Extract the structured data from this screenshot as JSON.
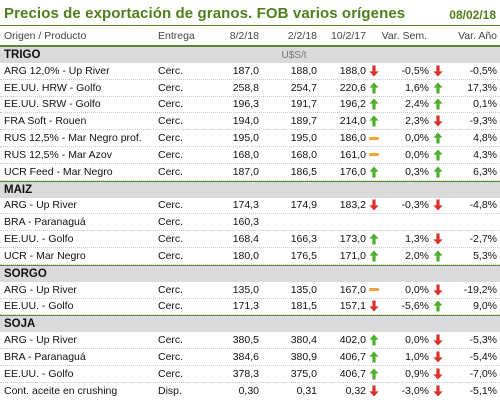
{
  "title": "Precios de exportación de granos. FOB varios orígenes",
  "date": "08/02/18",
  "headers": {
    "product": "Origen / Producto",
    "delivery": "Entrega",
    "d1": "8/2/18",
    "d2": "2/2/18",
    "d3": "10/2/17",
    "var_week": "Var. Sem.",
    "var_year": "Var. Año"
  },
  "colors": {
    "up": "#4caf2a",
    "down": "#d9312a",
    "flat": "#f2a33a",
    "accent": "#4f7f1c"
  },
  "sections": [
    {
      "name": "TRIGO",
      "unit": "U$S/t",
      "rows": [
        {
          "product": "ARG 12,0% - Up River",
          "delivery": "Cerc.",
          "d1": "187,0",
          "d2": "188,0",
          "d3": "188,0",
          "dir_w": "down",
          "var_week": "-0,5%",
          "dir_y": "down",
          "var_year": "-0,5%"
        },
        {
          "product": "EE.UU. HRW - Golfo",
          "delivery": "Cerc.",
          "d1": "258,8",
          "d2": "254,7",
          "d3": "220,6",
          "dir_w": "up",
          "var_week": "1,6%",
          "dir_y": "up",
          "var_year": "17,3%"
        },
        {
          "product": "EE.UU. SRW - Golfo",
          "delivery": "Cerc.",
          "d1": "196,3",
          "d2": "191,7",
          "d3": "196,2",
          "dir_w": "up",
          "var_week": "2,4%",
          "dir_y": "up",
          "var_year": "0,1%"
        },
        {
          "product": "FRA Soft - Rouen",
          "delivery": "Cerc.",
          "d1": "194,0",
          "d2": "189,7",
          "d3": "214,0",
          "dir_w": "up",
          "var_week": "2,3%",
          "dir_y": "down",
          "var_year": "-9,3%"
        },
        {
          "product": "RUS 12,5% - Mar Negro prof.",
          "delivery": "Cerc.",
          "d1": "195,0",
          "d2": "195,0",
          "d3": "186,0",
          "dir_w": "flat",
          "var_week": "0,0%",
          "dir_y": "up",
          "var_year": "4,8%"
        },
        {
          "product": "RUS 12,5% - Mar Azov",
          "delivery": "Cerc.",
          "d1": "168,0",
          "d2": "168,0",
          "d3": "161,0",
          "dir_w": "flat",
          "var_week": "0,0%",
          "dir_y": "up",
          "var_year": "4,3%"
        },
        {
          "product": "UCR Feed - Mar Negro",
          "delivery": "Cerc.",
          "d1": "187,0",
          "d2": "186,5",
          "d3": "176,0",
          "dir_w": "up",
          "var_week": "0,3%",
          "dir_y": "up",
          "var_year": "6,3%"
        }
      ]
    },
    {
      "name": "MAIZ",
      "unit": "",
      "rows": [
        {
          "product": "ARG - Up River",
          "delivery": "Cerc.",
          "d1": "174,3",
          "d2": "174,9",
          "d3": "183,2",
          "dir_w": "down",
          "var_week": "-0,3%",
          "dir_y": "down",
          "var_year": "-4,8%"
        },
        {
          "product": "BRA - Paranaguá",
          "delivery": "Cerc.",
          "d1": "160,3",
          "d2": "",
          "d3": "",
          "dir_w": "",
          "var_week": "",
          "dir_y": "",
          "var_year": ""
        },
        {
          "product": "EE.UU. - Golfo",
          "delivery": "Cerc.",
          "d1": "168,4",
          "d2": "166,3",
          "d3": "173,0",
          "dir_w": "up",
          "var_week": "1,3%",
          "dir_y": "down",
          "var_year": "-2,7%"
        },
        {
          "product": "UCR - Mar Negro",
          "delivery": "Cerc.",
          "d1": "180,0",
          "d2": "176,5",
          "d3": "171,0",
          "dir_w": "up",
          "var_week": "2,0%",
          "dir_y": "up",
          "var_year": "5,3%"
        }
      ]
    },
    {
      "name": "SORGO",
      "unit": "",
      "rows": [
        {
          "product": "ARG - Up River",
          "delivery": "Cerc.",
          "d1": "135,0",
          "d2": "135,0",
          "d3": "167,0",
          "dir_w": "flat",
          "var_week": "0,0%",
          "dir_y": "down",
          "var_year": "-19,2%"
        },
        {
          "product": "EE.UU. - Golfo",
          "delivery": "Cerc.",
          "d1": "171,3",
          "d2": "181,5",
          "d3": "157,1",
          "dir_w": "down",
          "var_week": "-5,6%",
          "dir_y": "up",
          "var_year": "9,0%"
        }
      ]
    },
    {
      "name": "SOJA",
      "unit": "",
      "rows": [
        {
          "product": "ARG - Up River",
          "delivery": "Cerc.",
          "d1": "380,5",
          "d2": "380,4",
          "d3": "402,0",
          "dir_w": "up",
          "var_week": "0,0%",
          "dir_y": "down",
          "var_year": "-5,3%"
        },
        {
          "product": "BRA - Paranaguá",
          "delivery": "Cerc.",
          "d1": "384,6",
          "d2": "380,9",
          "d3": "406,7",
          "dir_w": "up",
          "var_week": "1,0%",
          "dir_y": "down",
          "var_year": "-5,4%"
        },
        {
          "product": "EE.UU. - Golfo",
          "delivery": "Cerc.",
          "d1": "378,3",
          "d2": "375,0",
          "d3": "406,7",
          "dir_w": "up",
          "var_week": "0,9%",
          "dir_y": "down",
          "var_year": "-7,0%"
        },
        {
          "product": "Cont. aceite en crushing",
          "delivery": "Disp.",
          "d1": "0,30",
          "d2": "0,31",
          "d3": "0,32",
          "dir_w": "down",
          "var_week": "-3,0%",
          "dir_y": "down",
          "var_year": "-5,1%"
        }
      ]
    }
  ]
}
